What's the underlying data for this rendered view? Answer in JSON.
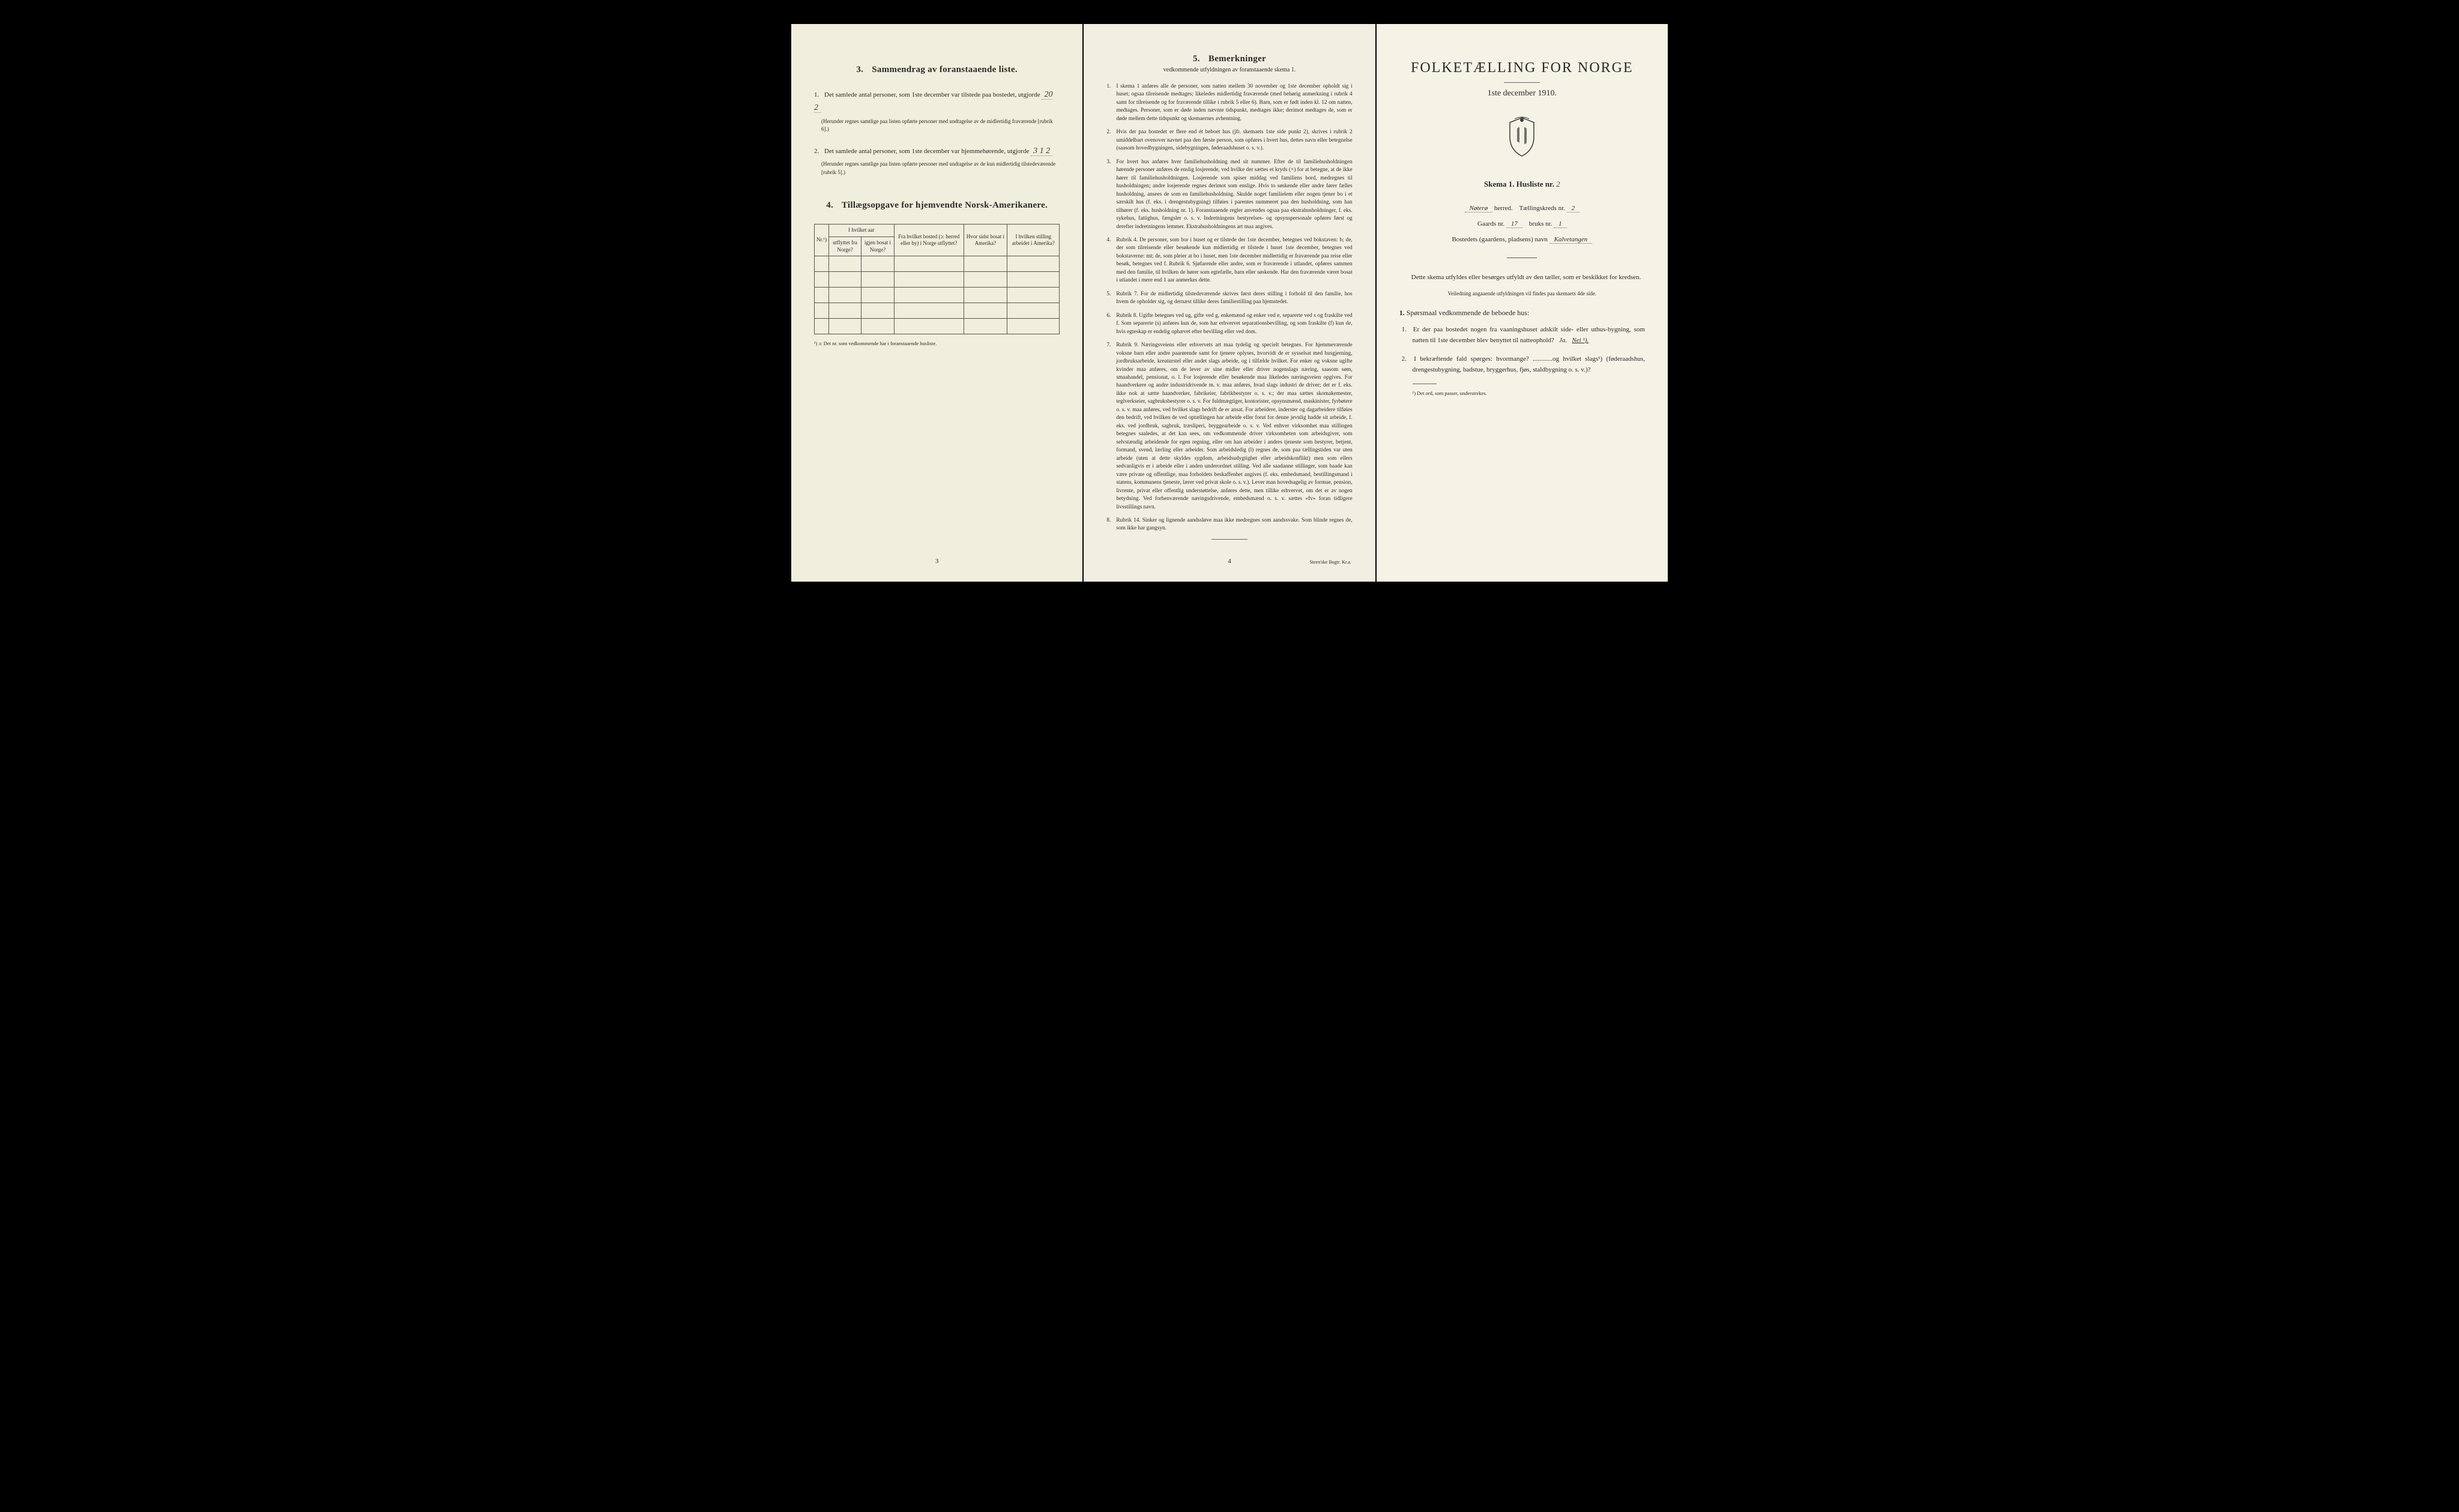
{
  "left": {
    "section3": {
      "num": "3.",
      "title": "Sammendrag av foranstaaende liste.",
      "item1_n": "1.",
      "item1": "Det samlede antal personer, som 1ste december var tilstede paa bostedet, utgjorde",
      "item1_value": "20 2",
      "item1_note": "(Herunder regnes samtlige paa listen opførte personer med undtagelse av de midlertidig fraværende [rubrik 6].)",
      "item2_n": "2.",
      "item2": "Det samlede antal personer, som 1ste december var hjemmehørende, utgjorde",
      "item2_value": "3 1 2",
      "item2_note": "(Herunder regnes samtlige paa listen opførte personer med undtagelse av de kun midlertidig tilstedeværende [rubrik 5].)"
    },
    "section4": {
      "num": "4.",
      "title": "Tillægsopgave for hjemvendte Norsk-Amerikanere.",
      "cols": {
        "c1": "Nr.¹)",
        "c2a": "I hvilket aar",
        "c2a_sub1": "utflyttet fra Norge?",
        "c2a_sub2": "igjen bosat i Norge?",
        "c3": "Fra hvilket bosted (ɔ: herred eller by) i Norge utflyttet?",
        "c4": "Hvor sidst bosat i Amerika?",
        "c5": "I hvilken stilling arbeidet i Amerika?"
      },
      "footnote": "¹) ɔ: Det nr. som vedkommende har i foranstaaende husliste."
    },
    "page_num": "3"
  },
  "middle": {
    "heading_num": "5.",
    "heading": "Bemerkninger",
    "subheading": "vedkommende utfyldningen av foranstaaende skema 1.",
    "remarks": [
      {
        "n": "1.",
        "t": "I skema 1 anføres alle de personer, som natten mellem 30 november og 1ste december opholdt sig i huset; ogsaa tilreisende medtages; likeledes midlertidig fraværende (med behørig anmerkning i rubrik 4 samt for tilreisende og for fraværende tillike i rubrik 5 eller 6). Barn, som er født inden kl. 12 om natten, medtages. Personer, som er døde inden nævnte tidspunkt, medtages ikke; derimot medtages de, som er døde mellem dette tidspunkt og skemaernes avhentning."
      },
      {
        "n": "2.",
        "t": "Hvis der paa bostedet er flere end ét beboet hus (jfr. skemaets 1ste side punkt 2), skrives i rubrik 2 umiddelbart ovenover navnet paa den første person, som opføres i hvert hus, dettes navn eller betegnelse (saasom hovedbygningen, sidebygningen, føderaadshuset o. s. v.)."
      },
      {
        "n": "3.",
        "t": "For hvert hus anføres hver familiehusholdning med sit nummer. Efter de til familiehusholdningen hørende personer anføres de enslig losjerende, ved hvilke der sættes et kryds (×) for at betegne, at de ikke hører til familiehusholdningen. Losjerende som spiser middag ved familiens bord, medregnes til husholdningen; andre losjerende regnes derimot som enslige. Hvis to søskende eller andre fører fælles husholdning, ansees de som en familiehusholdning. Skulde noget familielem eller nogen tjener bo i et særskilt hus (f. eks. i drengestubygning) tilføies i parentes nummeret paa den husholdning, som han tilhører (f. eks. husholdning nr. 1). Foranstaaende regler anvendes ogsaa paa ekstrahusholdninger, f. eks. sykehus, fattighus, fængsler o. s. v. Indretningens bestyrelses- og opsynspersonale opføres først og derefter indretningens lemmer. Ekstrahusholdningens art maa angives."
      },
      {
        "n": "4.",
        "t": "Rubrik 4. De personer, som bor i huset og er tilstede der 1ste december, betegnes ved bokstaven: b; de, der som tilreisende eller besøkende kun midlertidig er tilstede i huset 1ste december, betegnes ved bokstaverne: mt; de, som pleier at bo i huset, men 1ste december midlertidig er fraværende paa reise eller besøk, betegnes ved f. Rubrik 6. Sjøfarende eller andre, som er fraværende i utlandet, opføres sammen med den familie, til hvilken de hører som egtefælle, barn eller søskende. Har den fraværende været bosat i utlandet i mere end 1 aar anmerkes dette."
      },
      {
        "n": "5.",
        "t": "Rubrik 7. For de midlertidig tilstedeværende skrives først deres stilling i forhold til den familie, hos hvem de opholder sig, og dernæst tillike deres familiestilling paa hjemstedet."
      },
      {
        "n": "6.",
        "t": "Rubrik 8. Ugifte betegnes ved ug, gifte ved g, enkemænd og enker ved e, separerte ved s og fraskilte ved f. Som separerte (s) anføres kun de, som har erhvervet separationsbevilling, og som fraskilte (f) kun de, hvis egteskap er endelig ophævet efter bevilling eller ved dom."
      },
      {
        "n": "7.",
        "t": "Rubrik 9. Næringsveiens eller erhvervets art maa tydelig og specielt betegnes. For hjemmeværende voksne barn eller andre paarørende samt for tjenere oplyses, hvorvidt de er sysselsat med husgjerning, jordbruksarbeide, kreaturstel eller andet slags arbeide, og i tilfælde hvilket. For enker og voksne ugifte kvinder maa anføres, om de lever av sine midler eller driver nogenslags næring, saasom søm, smaahandel, pensionat, o. l. For losjerende eller besøkende maa likeledes næringsveien opgives. For haandverkere og andre industridrivende m. v. maa anføres, hvad slags industri de driver; det er f. eks. ikke nok at sætte haandverker, fabrikeier, fabrikbestyrer o. s. v.; der maa sættes skomakemester, teglverkseier, sagbruksbestyrer o. s. v. For fuldmægtiger, kontorister, opsynsmænd, maskinister, fyrbøtere o. s. v. maa anføres, ved hvilket slags bedrift de er ansat. For arbeidere, inderster og dagarbeidere tilføies den bedrift, ved hvilken de ved optællingen har arbeide eller forut for denne jevnlig hadde sit arbeide, f. eks. ved jordbruk, sagbruk, træsliperi, bryggearbeide o. s. v. Ved enhver virksomhet maa stillingen betegnes saaledes, at det kan sees, om vedkommende driver virksomheten som arbeidsgiver, som selvstændig arbeidende for egen regning, eller om han arbeider i andres tjeneste som bestyrer, betjent, formand, svend, lærling eller arbeider. Som arbeidsledig (l) regnes de, som paa tællingstiden var uten arbeide (uten at dette skyldes sygdom, arbeidsudygtighet eller arbeidskonflikt) men som ellers sedvanligvis er i arbeide eller i anden underordnet stilling. Ved alle saadanne stillinger, som baade kan være private og offentlige, maa forholdets beskaffenhet angives (f. eks. embedsmand, bestillingsmand i statens, kommunens tjeneste, lærer ved privat skole o. s. v.). Lever man hovedsagelig av formue, pension, livrente, privat eller offentlig understøttelse, anføres dette, men tillike erhvervet, om det er av nogen betydning. Ved forhenværende næringsdrivende, embedsmænd o. s. v. sættes «fv» foran tidligere livsstillings navn."
      },
      {
        "n": "8.",
        "t": "Rubrik 14. Sinker og lignende aandssløve maa ikke medregnes som aandssvake. Som blinde regnes de, som ikke har gangsyn."
      }
    ],
    "page_num": "4",
    "imprint": "Steen'ske Bogtr. Kr.a."
  },
  "right": {
    "title": "FOLKETÆLLING FOR NORGE",
    "date": "1ste december 1910.",
    "schema_label": "Skema 1.  Husliste nr.",
    "husliste_nr": "2",
    "herred_value": "Nøterø",
    "herred_label": "herred.",
    "kreds_label": "Tællingskreds nr.",
    "kreds_value": "2",
    "gaards_label": "Gaards nr.",
    "gaards_value": "17",
    "bruks_label": "bruks nr.",
    "bruks_value": "1",
    "bosted_label": "Bostedets (gaardens, pladsens) navn",
    "bosted_value": "Kalvetangen",
    "instr1": "Dette skema utfyldes eller besørges utfyldt av den tæller, som er beskikket for kredsen.",
    "instr2": "Veiledning angaaende utfyldningen vil findes paa skemaets 4de side.",
    "q_heading_n": "1.",
    "q_heading": "Spørsmaal vedkommende de beboede hus:",
    "q1_n": "1.",
    "q1": "Er der paa bostedet nogen fra vaaningshuset adskilt side- eller uthus-bygning, som natten til 1ste december blev benyttet til natteophold?",
    "q1_ja": "Ja.",
    "q1_nei": "Nei ¹).",
    "q2_n": "2.",
    "q2": "I bekræftende fald spørges: hvormange? ............og hvilket slags¹) (føderaadshus, drengestubygning, badstue, bryggerhus, fjøs, staldbygning o. s. v.)?",
    "footnote": "¹) Det ord, som passer, understrekes."
  }
}
